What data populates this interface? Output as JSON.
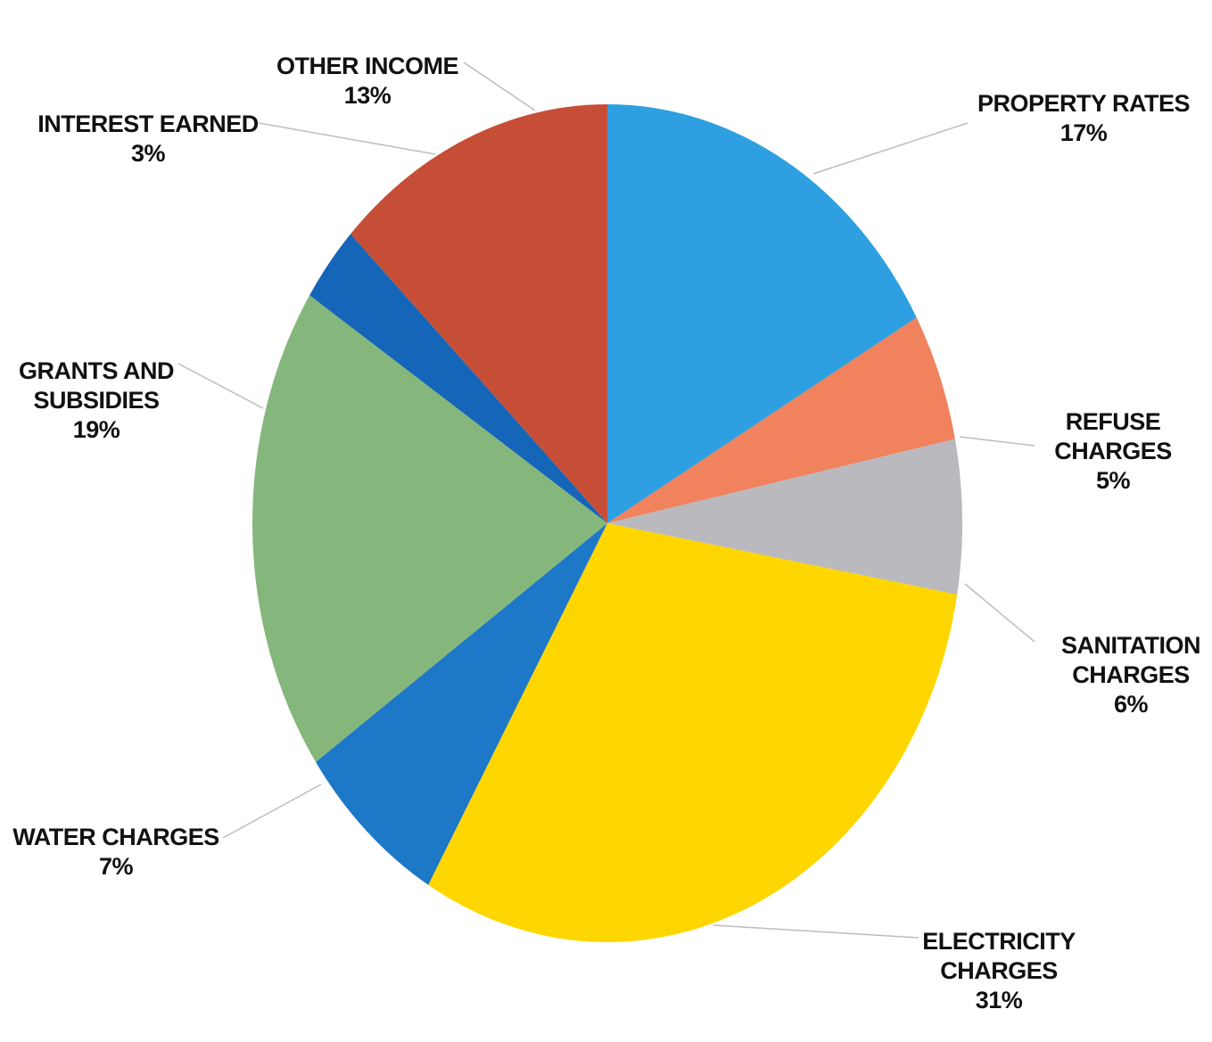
{
  "chart_data": {
    "type": "pie",
    "title": "",
    "slices": [
      {
        "label_lines": [
          "PROPERTY RATES"
        ],
        "percent_label": "17%",
        "value": 17,
        "color": "#2E9FE0"
      },
      {
        "label_lines": [
          "REFUSE",
          "CHARGES"
        ],
        "percent_label": "5%",
        "value": 5,
        "color": "#F0825E"
      },
      {
        "label_lines": [
          "SANITATION",
          "CHARGES"
        ],
        "percent_label": "6%",
        "value": 6,
        "color": "#B9B9BE"
      },
      {
        "label_lines": [
          "ELECTRICITY",
          "CHARGES"
        ],
        "percent_label": "31%",
        "value": 31,
        "color": "#FFD600"
      },
      {
        "label_lines": [
          "WATER CHARGES"
        ],
        "percent_label": "7%",
        "value": 7,
        "color": "#1E78C8"
      },
      {
        "label_lines": [
          "GRANTS AND",
          "SUBSIDIES"
        ],
        "percent_label": "19%",
        "value": 19,
        "color": "#85B77C"
      },
      {
        "label_lines": [
          "INTEREST EARNED"
        ],
        "percent_label": "3%",
        "value": 3,
        "color": "#1565B8"
      },
      {
        "label_lines": [
          "OTHER INCOME"
        ],
        "percent_label": "13%",
        "value": 13,
        "color": "#C64E36"
      }
    ],
    "start_angle_deg": 0,
    "direction": "clockwise",
    "legend": "none",
    "data_labels": "outside with leader lines"
  }
}
